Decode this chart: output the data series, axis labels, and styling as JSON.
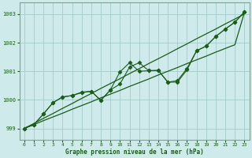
{
  "title": "Graphe pression niveau de la mer (hPa)",
  "background_color": "#ceeaea",
  "grid_color": "#aacece",
  "line_color": "#1a5c1a",
  "spine_color": "#7aaa7a",
  "xlim": [
    -0.5,
    23.5
  ],
  "ylim": [
    998.6,
    1003.4
  ],
  "yticks": [
    999,
    1000,
    1001,
    1002,
    1003
  ],
  "xticks": [
    0,
    1,
    2,
    3,
    4,
    5,
    6,
    7,
    8,
    9,
    10,
    11,
    12,
    13,
    14,
    15,
    16,
    17,
    18,
    19,
    20,
    21,
    22,
    23
  ],
  "s1_x": [
    0,
    1,
    2,
    3,
    4,
    5,
    6,
    7,
    8,
    9,
    10,
    11,
    12,
    13,
    14,
    15,
    16,
    17,
    18,
    19,
    20,
    21,
    22,
    23
  ],
  "s1_y": [
    999.0,
    999.17,
    999.35,
    999.52,
    999.7,
    999.87,
    1000.05,
    1000.22,
    1000.4,
    1000.57,
    1000.74,
    1000.92,
    1001.09,
    1001.27,
    1001.44,
    1001.61,
    1001.79,
    1001.96,
    1002.14,
    1002.31,
    1002.48,
    1002.66,
    1002.83,
    1003.01
  ],
  "s2_x": [
    0,
    1,
    2,
    3,
    4,
    5,
    6,
    7,
    8,
    9,
    10,
    11,
    12,
    13,
    14,
    15,
    16,
    17,
    18,
    19,
    20,
    21,
    22,
    23
  ],
  "s2_y": [
    999.0,
    999.13,
    999.27,
    999.4,
    999.53,
    999.67,
    999.8,
    999.93,
    1000.07,
    1000.2,
    1000.33,
    1000.47,
    1000.6,
    1000.73,
    1000.87,
    1001.0,
    1001.13,
    1001.27,
    1001.4,
    1001.53,
    1001.67,
    1001.8,
    1001.93,
    1003.07
  ],
  "s3_x": [
    0,
    1,
    2,
    3,
    4,
    5,
    6,
    7,
    8,
    9,
    10,
    11,
    12,
    13,
    14,
    15,
    16,
    17,
    18,
    19,
    20,
    21,
    22,
    23
  ],
  "s3_y": [
    999.0,
    999.13,
    999.5,
    999.9,
    1000.1,
    1000.15,
    1000.25,
    1000.3,
    999.98,
    1000.35,
    1000.55,
    1001.15,
    1001.3,
    1001.02,
    1001.03,
    1000.62,
    1000.62,
    1001.05,
    1001.72,
    1001.88,
    1002.22,
    1002.48,
    1002.72,
    1003.08
  ],
  "s4_x": [
    0,
    1,
    2,
    3,
    4,
    5,
    6,
    7,
    8,
    9,
    10,
    11,
    12,
    13,
    14,
    15,
    16,
    17,
    18,
    19,
    20,
    21,
    22,
    23
  ],
  "s4_y": [
    999.0,
    999.13,
    999.5,
    999.9,
    1000.1,
    1000.15,
    1000.27,
    1000.3,
    999.98,
    1000.35,
    1000.98,
    1001.3,
    1001.0,
    1001.02,
    1001.03,
    1000.62,
    1000.67,
    1001.1,
    1001.72,
    1001.88,
    1002.22,
    1002.48,
    1002.72,
    1003.08
  ]
}
